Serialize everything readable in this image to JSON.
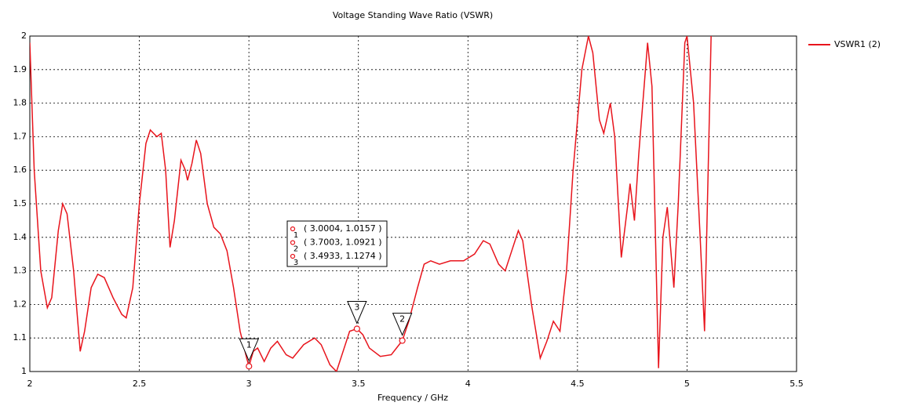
{
  "chart_data": {
    "type": "line",
    "title": "Voltage Standing Wave Ratio (VSWR)",
    "x_label": "Frequency / GHz",
    "xlim": [
      2,
      5.5
    ],
    "xticks": [
      2,
      2.5,
      3,
      3.5,
      4,
      4.5,
      5,
      5.5
    ],
    "ylim": [
      1,
      2
    ],
    "yticks": [
      1,
      1.1,
      1.2,
      1.3,
      1.4,
      1.5,
      1.6,
      1.7,
      1.8,
      1.9,
      2
    ],
    "grid": true,
    "legend": "top-right",
    "x": [
      2.0,
      2.02,
      2.05,
      2.08,
      2.1,
      2.13,
      2.15,
      2.17,
      2.2,
      2.23,
      2.25,
      2.28,
      2.31,
      2.34,
      2.38,
      2.42,
      2.44,
      2.47,
      2.5,
      2.53,
      2.55,
      2.58,
      2.6,
      2.62,
      2.64,
      2.66,
      2.69,
      2.71,
      2.72,
      2.74,
      2.76,
      2.78,
      2.81,
      2.84,
      2.87,
      2.9,
      2.93,
      2.96,
      2.99,
      3.0004,
      3.02,
      3.04,
      3.07,
      3.1,
      3.13,
      3.17,
      3.2,
      3.25,
      3.3,
      3.33,
      3.37,
      3.4,
      3.43,
      3.46,
      3.4933,
      3.52,
      3.55,
      3.6,
      3.65,
      3.7003,
      3.73,
      3.77,
      3.8,
      3.83,
      3.87,
      3.92,
      3.98,
      4.03,
      4.07,
      4.1,
      4.14,
      4.17,
      4.2,
      4.23,
      4.25,
      4.29,
      4.33,
      4.36,
      4.39,
      4.42,
      4.45,
      4.48,
      4.52,
      4.55,
      4.57,
      4.6,
      4.62,
      4.65,
      4.67,
      4.7,
      4.73,
      4.74,
      4.76,
      4.78,
      4.82,
      4.84,
      4.87,
      4.89,
      4.91,
      4.94,
      4.96,
      4.99,
      5.0,
      5.03,
      5.06,
      5.08,
      5.1,
      5.11
    ],
    "series": [
      {
        "name": "VSWR1 (2)",
        "color": "#e8141c",
        "values": [
          1.98,
          1.6,
          1.3,
          1.19,
          1.22,
          1.42,
          1.5,
          1.47,
          1.3,
          1.06,
          1.12,
          1.25,
          1.29,
          1.28,
          1.22,
          1.17,
          1.16,
          1.25,
          1.5,
          1.68,
          1.72,
          1.7,
          1.71,
          1.6,
          1.37,
          1.45,
          1.63,
          1.6,
          1.57,
          1.62,
          1.69,
          1.65,
          1.5,
          1.43,
          1.41,
          1.36,
          1.25,
          1.12,
          1.04,
          1.0157,
          1.06,
          1.07,
          1.03,
          1.07,
          1.09,
          1.05,
          1.04,
          1.08,
          1.1,
          1.08,
          1.02,
          1.0,
          1.06,
          1.12,
          1.1274,
          1.11,
          1.07,
          1.045,
          1.05,
          1.0921,
          1.15,
          1.25,
          1.32,
          1.33,
          1.32,
          1.33,
          1.33,
          1.35,
          1.39,
          1.38,
          1.32,
          1.3,
          1.36,
          1.42,
          1.39,
          1.2,
          1.04,
          1.09,
          1.15,
          1.12,
          1.3,
          1.6,
          1.9,
          2.0,
          1.95,
          1.75,
          1.71,
          1.8,
          1.7,
          1.34,
          1.5,
          1.56,
          1.45,
          1.65,
          1.98,
          1.85,
          1.01,
          1.4,
          1.49,
          1.25,
          1.5,
          1.98,
          2.0,
          1.8,
          1.4,
          1.12,
          1.7,
          2.0
        ]
      }
    ],
    "markers": [
      {
        "name": "1",
        "x": 3.0004,
        "y": 1.0157,
        "label": "( 3.0004, 1.0157 )"
      },
      {
        "name": "2",
        "x": 3.7003,
        "y": 1.0921,
        "label": "( 3.7003, 1.0921 )"
      },
      {
        "name": "3",
        "x": 3.4933,
        "y": 1.1274,
        "label": "( 3.4933, 1.1274 )"
      }
    ]
  }
}
